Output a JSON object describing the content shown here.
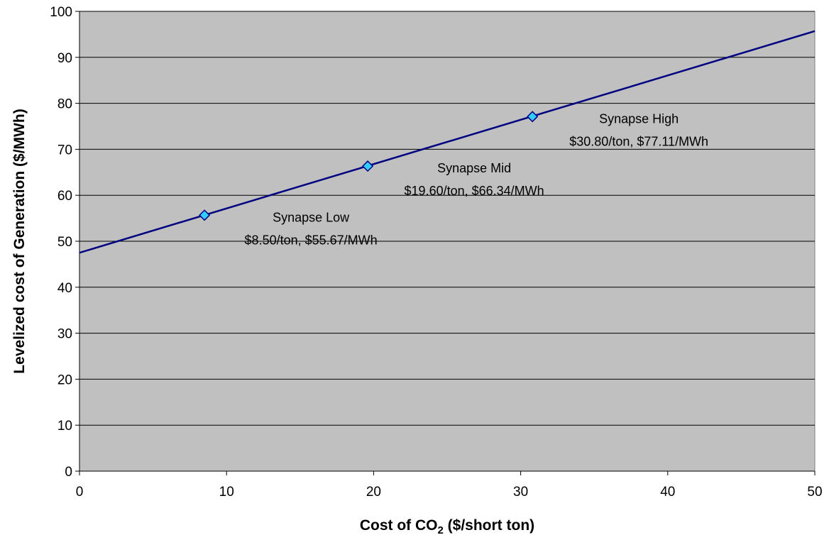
{
  "chart_data": {
    "type": "line",
    "xlabel": {
      "main": "Cost of CO",
      "sub": "2",
      "rest": " ($/short ton)"
    },
    "ylabel": "Levelized cost of Generation ($/MWh)",
    "xlim": [
      0,
      50
    ],
    "ylim": [
      0,
      100
    ],
    "x_ticks": [
      0,
      10,
      20,
      30,
      40,
      50
    ],
    "y_ticks": [
      0,
      10,
      20,
      30,
      40,
      50,
      60,
      70,
      80,
      90,
      100
    ],
    "grid": "horizontal",
    "colors": {
      "plot_bg": "#c0c0c0",
      "line": "#000080",
      "marker": "#33ccff",
      "grid": "#000000"
    },
    "series": [
      {
        "x": [
          0,
          50
        ],
        "y": [
          47.5,
          95.7
        ]
      }
    ],
    "points": [
      {
        "x": 8.5,
        "y": 55.67,
        "name": "Synapse Low",
        "label": "$8.50/ton, $55.67/MWh"
      },
      {
        "x": 19.6,
        "y": 66.34,
        "name": "Synapse Mid",
        "label": "$19.60/ton, $66.34/MWh"
      },
      {
        "x": 30.8,
        "y": 77.11,
        "name": "Synapse High",
        "label": "$30.80/ton, $77.11/MWh"
      }
    ]
  }
}
